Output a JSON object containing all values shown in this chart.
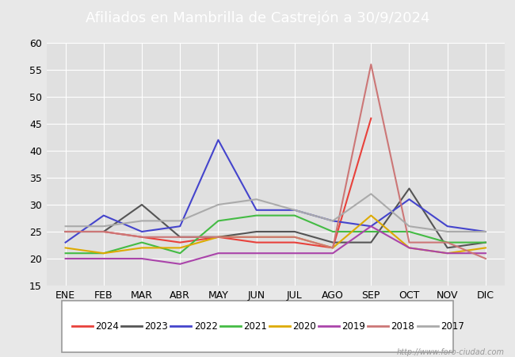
{
  "title": "Afiliados en Mambrilla de Castrejón a 30/9/2024",
  "title_color": "#ffffff",
  "title_bg_color": "#5588cc",
  "months": [
    "ENE",
    "FEB",
    "MAR",
    "ABR",
    "MAY",
    "JUN",
    "JUL",
    "AGO",
    "SEP",
    "OCT",
    "NOV",
    "DIC"
  ],
  "watermark": "http://www.foro-ciudad.com",
  "series": {
    "2024": {
      "color": "#e8413b",
      "data": [
        25,
        25,
        24,
        23,
        24,
        23,
        23,
        22,
        46,
        null,
        null,
        null
      ]
    },
    "2023": {
      "color": "#555555",
      "data": [
        25,
        25,
        30,
        24,
        24,
        25,
        25,
        23,
        23,
        33,
        22,
        23
      ]
    },
    "2022": {
      "color": "#4444cc",
      "data": [
        23,
        28,
        25,
        26,
        42,
        29,
        29,
        27,
        26,
        31,
        26,
        25
      ]
    },
    "2021": {
      "color": "#44bb44",
      "data": [
        21,
        21,
        23,
        21,
        27,
        28,
        28,
        25,
        25,
        25,
        23,
        23
      ]
    },
    "2020": {
      "color": "#ddaa00",
      "data": [
        22,
        21,
        22,
        22,
        24,
        24,
        24,
        22,
        28,
        22,
        21,
        22
      ]
    },
    "2019": {
      "color": "#aa44aa",
      "data": [
        20,
        20,
        20,
        19,
        21,
        21,
        21,
        21,
        26,
        22,
        21,
        21
      ]
    },
    "2018": {
      "color": "#cc7777",
      "data": [
        25,
        25,
        24,
        24,
        24,
        24,
        24,
        22,
        56,
        23,
        23,
        20
      ]
    },
    "2017": {
      "color": "#aaaaaa",
      "data": [
        26,
        26,
        27,
        27,
        30,
        31,
        29,
        27,
        32,
        26,
        25,
        25
      ]
    }
  },
  "legend_order": [
    "2024",
    "2023",
    "2022",
    "2021",
    "2020",
    "2019",
    "2018",
    "2017"
  ],
  "ylim": [
    15,
    60
  ],
  "yticks": [
    15,
    20,
    25,
    30,
    35,
    40,
    45,
    50,
    55,
    60
  ],
  "bg_color": "#e8e8e8",
  "plot_bg_color": "#e0e0e0",
  "grid_color": "#ffffff",
  "font_size": 9,
  "title_font_size": 13
}
